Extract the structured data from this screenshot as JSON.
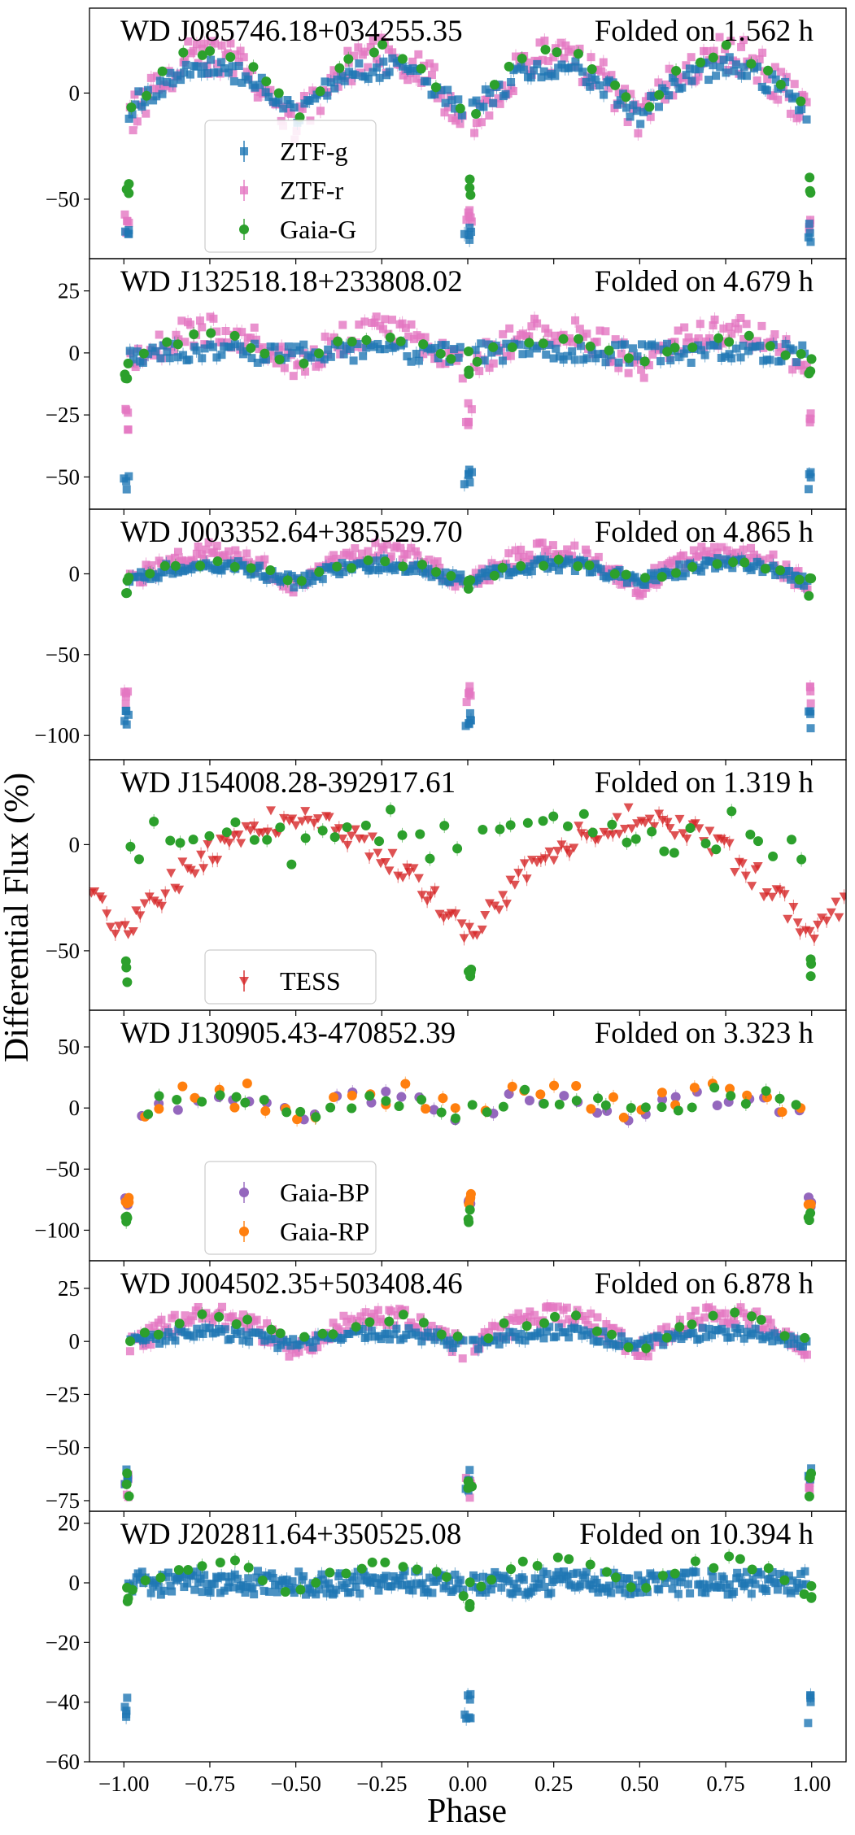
{
  "figure": {
    "ylabel": "Differential Flux (%)",
    "xlabel": "Phase",
    "xlim": [
      -1.1,
      1.1
    ],
    "xticks": [
      -1.0,
      -0.75,
      -0.5,
      -0.25,
      0.0,
      0.25,
      0.5,
      0.75,
      1.0
    ],
    "xtick_labels": [
      "−1.00",
      "−0.75",
      "−0.50",
      "−0.25",
      "0.00",
      "0.25",
      "0.50",
      "0.75",
      "1.00"
    ]
  },
  "colors": {
    "ZTF-g": "#1f77b4",
    "ZTF-r": "#e377c2",
    "Gaia-G": "#2ca02c",
    "TESS": "#d62728",
    "Gaia-BP": "#9467bd",
    "Gaia-RP": "#ff7f0e"
  },
  "chart_data": [
    {
      "type": "scatter",
      "title": "WD J085746.18+034255.35",
      "period_label": "Folded on 1.562 h",
      "ylim": [
        -78,
        40
      ],
      "yticks": [
        0,
        -50
      ],
      "ytick_labels": [
        "0",
        "−50"
      ],
      "legend": {
        "location": "lower-left",
        "entries": [
          "ZTF-g",
          "ZTF-r",
          "Gaia-G"
        ]
      },
      "series": [
        {
          "name": "ZTF-r",
          "shape": "square",
          "pattern": "hump",
          "base": -14,
          "amp": 32,
          "spread": 9,
          "n": 260,
          "dip": -60
        },
        {
          "name": "ZTF-g",
          "shape": "square",
          "pattern": "hump",
          "base": -10,
          "amp": 22,
          "spread": 5,
          "n": 200,
          "dip": -65
        },
        {
          "name": "Gaia-G",
          "shape": "circle",
          "pattern": "hump",
          "base": -12,
          "amp": 32,
          "spread": 3,
          "n": 40,
          "dip": -45
        }
      ]
    },
    {
      "type": "scatter",
      "title": "WD J132518.18+233808.02",
      "period_label": "Folded on 4.679 h",
      "ylim": [
        -63,
        38
      ],
      "yticks": [
        25,
        0,
        -25,
        -50
      ],
      "ytick_labels": [
        "25",
        "0",
        "−25",
        "−50"
      ],
      "legend": null,
      "series": [
        {
          "name": "ZTF-r",
          "shape": "square",
          "pattern": "hump",
          "base": -6,
          "amp": 15,
          "spread": 6,
          "n": 240,
          "dip": -25
        },
        {
          "name": "ZTF-g",
          "shape": "square",
          "pattern": "flat",
          "base": 0,
          "amp": 0,
          "spread": 4,
          "n": 180,
          "dip": -50
        },
        {
          "name": "Gaia-G",
          "shape": "circle",
          "pattern": "hump",
          "base": -4,
          "amp": 10,
          "spread": 2,
          "n": 40,
          "dip": -5
        }
      ]
    },
    {
      "type": "scatter",
      "title": "WD J003352.64+385529.70",
      "period_label": "Folded on 4.865 h",
      "ylim": [
        -115,
        40
      ],
      "yticks": [
        0,
        -50,
        -100
      ],
      "ytick_labels": [
        "0",
        "−50",
        "−100"
      ],
      "legend": null,
      "series": [
        {
          "name": "ZTF-r",
          "shape": "square",
          "pattern": "hump",
          "base": -8,
          "amp": 22,
          "spread": 6,
          "n": 260,
          "dip": -75
        },
        {
          "name": "ZTF-g",
          "shape": "square",
          "pattern": "hump",
          "base": -6,
          "amp": 12,
          "spread": 4,
          "n": 260,
          "dip": -90
        },
        {
          "name": "Gaia-G",
          "shape": "circle",
          "pattern": "hump",
          "base": -5,
          "amp": 12,
          "spread": 2,
          "n": 40,
          "dip": -8
        }
      ]
    },
    {
      "type": "scatter",
      "title": "WD J154008.28-392917.61",
      "period_label": "Folded on 1.319 h",
      "ylim": [
        -78,
        40
      ],
      "yticks": [
        0,
        -50
      ],
      "ytick_labels": [
        "0",
        "−50"
      ],
      "legend": {
        "location": "lower-center",
        "entries": [
          "TESS"
        ]
      },
      "series": [
        {
          "name": "TESS",
          "shape": "triangle-down",
          "pattern": "vshape",
          "base": 12,
          "amp": 55,
          "spread": 6,
          "n": 180,
          "dip": -45
        },
        {
          "name": "Gaia-G",
          "shape": "circle",
          "pattern": "hump",
          "base": -5,
          "amp": 12,
          "spread": 10,
          "n": 50,
          "dip": -60
        }
      ]
    },
    {
      "type": "scatter",
      "title": "WD J130905.43-470852.39",
      "period_label": "Folded on 3.323 h",
      "ylim": [
        -125,
        80
      ],
      "yticks": [
        50,
        0,
        -50,
        -100
      ],
      "ytick_labels": [
        "50",
        "0",
        "−50",
        "−100"
      ],
      "legend": {
        "location": "lower-left",
        "entries": [
          "Gaia-BP",
          "Gaia-RP"
        ]
      },
      "series": [
        {
          "name": "Gaia-BP",
          "shape": "circle",
          "pattern": "hump",
          "base": -6,
          "amp": 14,
          "spread": 8,
          "n": 40,
          "dip": -75
        },
        {
          "name": "Gaia-RP",
          "shape": "circle",
          "pattern": "hump",
          "base": -6,
          "amp": 20,
          "spread": 12,
          "n": 40,
          "dip": -75
        },
        {
          "name": "Gaia-G",
          "shape": "circle",
          "pattern": "hump",
          "base": -5,
          "amp": 15,
          "spread": 8,
          "n": 40,
          "dip": -88
        }
      ]
    },
    {
      "type": "scatter",
      "title": "WD J004502.35+503408.46",
      "period_label": "Folded on 6.878 h",
      "ylim": [
        -80,
        38
      ],
      "yticks": [
        25,
        0,
        -25,
        -50,
        -75
      ],
      "ytick_labels": [
        "25",
        "0",
        "−25",
        "−50",
        "−75"
      ],
      "legend": null,
      "series": [
        {
          "name": "ZTF-r",
          "shape": "square",
          "pattern": "hump",
          "base": -5,
          "amp": 17,
          "spread": 5,
          "n": 260,
          "dip": -68
        },
        {
          "name": "ZTF-g",
          "shape": "square",
          "pattern": "hump",
          "base": -2,
          "amp": 6,
          "spread": 3,
          "n": 220,
          "dip": -65
        },
        {
          "name": "Gaia-G",
          "shape": "circle",
          "pattern": "hump",
          "base": -3,
          "amp": 14,
          "spread": 3,
          "n": 40,
          "dip": -68
        }
      ]
    },
    {
      "type": "scatter",
      "title": "WD J202811.64+350525.08",
      "period_label": "Folded on 10.394 h",
      "ylim": [
        -60,
        24
      ],
      "yticks": [
        20,
        0,
        -20,
        -40,
        -60
      ],
      "ytick_labels": [
        "20",
        "0",
        "−20",
        "−40",
        "−60"
      ],
      "legend": null,
      "series": [
        {
          "name": "ZTF-g",
          "shape": "square",
          "pattern": "flat",
          "base": 0,
          "amp": 0,
          "spread": 4,
          "n": 360,
          "dip": -42
        },
        {
          "name": "Gaia-G",
          "shape": "circle",
          "pattern": "hump",
          "base": -4,
          "amp": 11,
          "spread": 2,
          "n": 45,
          "dip": -5
        }
      ]
    }
  ]
}
